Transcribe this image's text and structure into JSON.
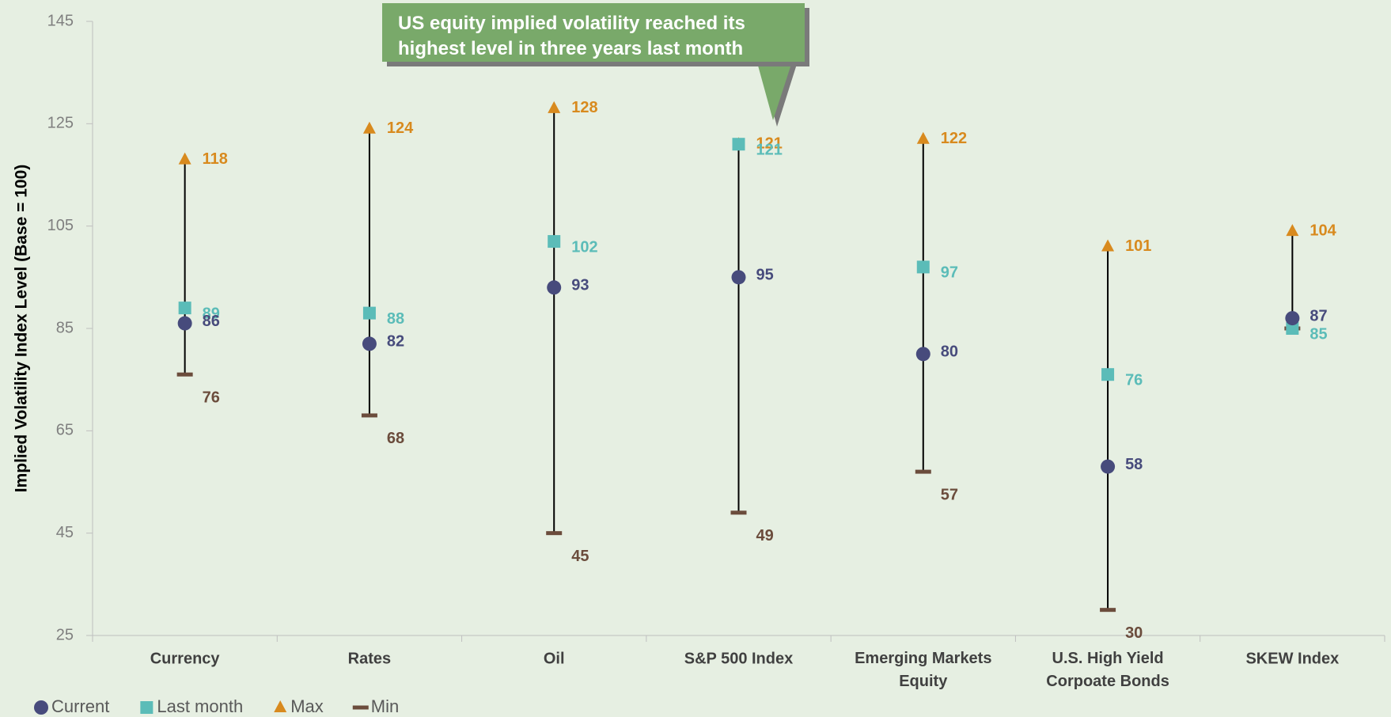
{
  "chart_data": {
    "type": "hilo",
    "ylabel": "Implied Volatility Index Level (Base = 100)",
    "annotation": "US equity implied volatility reached its highest level in three years last month",
    "categories": [
      "Currency",
      "Rates",
      "Oil",
      "S&P 500 Index",
      "Emerging Markets Equity",
      "U.S. High Yield Corpoate Bonds",
      "SKEW Index"
    ],
    "series": [
      {
        "name": "Current",
        "color": "#474b7c",
        "marker": "circle",
        "values": [
          86,
          82,
          93,
          95,
          80,
          58,
          87
        ]
      },
      {
        "name": "Last month",
        "color": "#5bbcb8",
        "marker": "square",
        "values": [
          89,
          88,
          102,
          121,
          97,
          76,
          85
        ]
      },
      {
        "name": "Max",
        "color": "#d88a1e",
        "marker": "triangle",
        "values": [
          118,
          124,
          128,
          121,
          122,
          101,
          104
        ]
      },
      {
        "name": "Min",
        "color": "#6b4c3c",
        "marker": "dash",
        "values": [
          76,
          68,
          45,
          49,
          57,
          30,
          85
        ],
        "value_labels": [
          "76",
          "68",
          "45",
          "49",
          "57",
          "30",
          null
        ]
      }
    ],
    "ylim": [
      25,
      145
    ],
    "yticks": [
      25,
      45,
      65,
      85,
      105,
      125,
      145
    ],
    "grid": false
  }
}
